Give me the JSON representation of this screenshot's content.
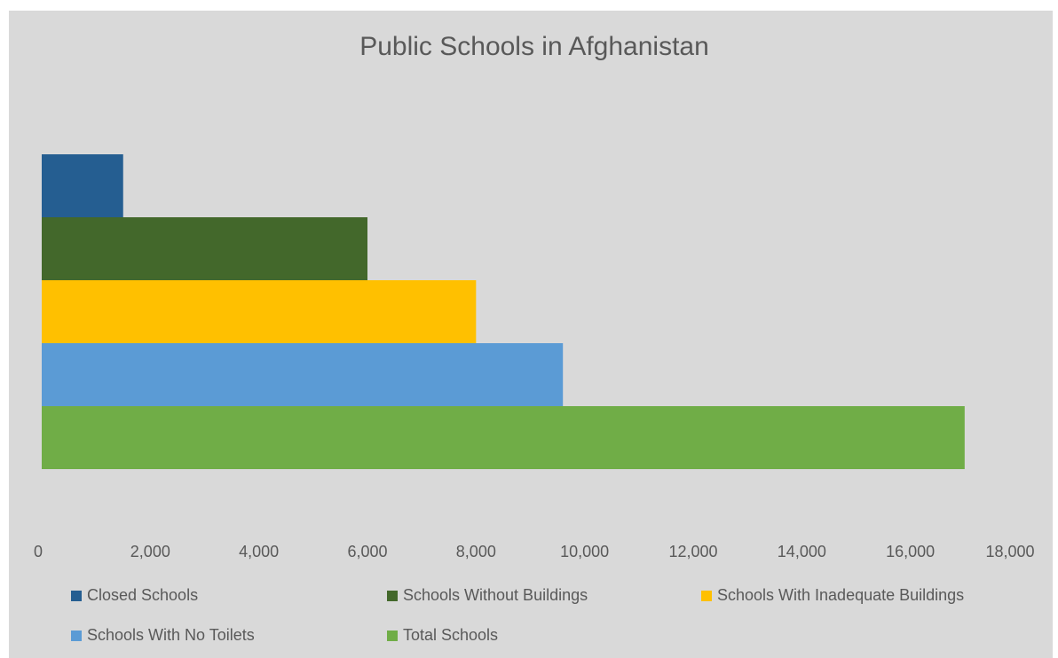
{
  "chart_data": {
    "type": "bar",
    "orientation": "horizontal",
    "title": "Public Schools in Afghanistan",
    "xlim": [
      0,
      18000
    ],
    "x_ticks": [
      "0",
      "2,000",
      "4,000",
      "6,000",
      "8,000",
      "10,000",
      "12,000",
      "14,000",
      "16,000",
      "18,000"
    ],
    "grid": false,
    "legend_position": "bottom",
    "series": [
      {
        "name": "Closed Schools",
        "value": 1500,
        "color": "#255e91"
      },
      {
        "name": "Schools Without Buildings",
        "value": 6000,
        "color": "#43682b"
      },
      {
        "name": "Schools With Inadequate Buildings",
        "value": 8000,
        "color": "#ffc000"
      },
      {
        "name": "Schools With No Toilets",
        "value": 9600,
        "color": "#5b9bd5"
      },
      {
        "name": "Total Schools",
        "value": 17000,
        "color": "#70ad47"
      }
    ]
  }
}
